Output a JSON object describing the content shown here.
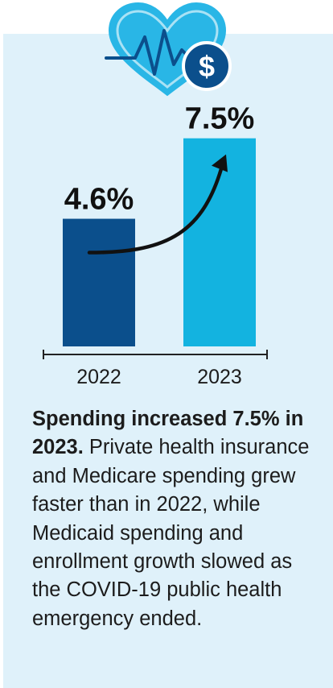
{
  "colors": {
    "panel_background": "#dff1fa",
    "bar_2022": "#0b4f8c",
    "bar_2023": "#13b3e0",
    "heart": "#29b6e6",
    "dollar_badge": "#0b4f8c",
    "text": "#1c1c1c"
  },
  "icon": {
    "name": "heart-with-pulse-and-dollar-icon",
    "symbol": "$"
  },
  "chart_data": {
    "type": "bar",
    "categories": [
      "2022",
      "2023"
    ],
    "values": [
      4.6,
      7.5
    ],
    "value_labels": [
      "4.6%",
      "7.5%"
    ],
    "unit": "%",
    "ylim": [
      0,
      9
    ],
    "grid": false,
    "annotation": "upward-arrow-from-2022-to-2023"
  },
  "caption": {
    "bold": "Spending increased 7.5% in 2023.",
    "text": " Private health insurance and Medicare spending grew faster than in 2022, while Medicaid spending and enrollment growth slowed as the COVID-19 public health emergency ended."
  }
}
